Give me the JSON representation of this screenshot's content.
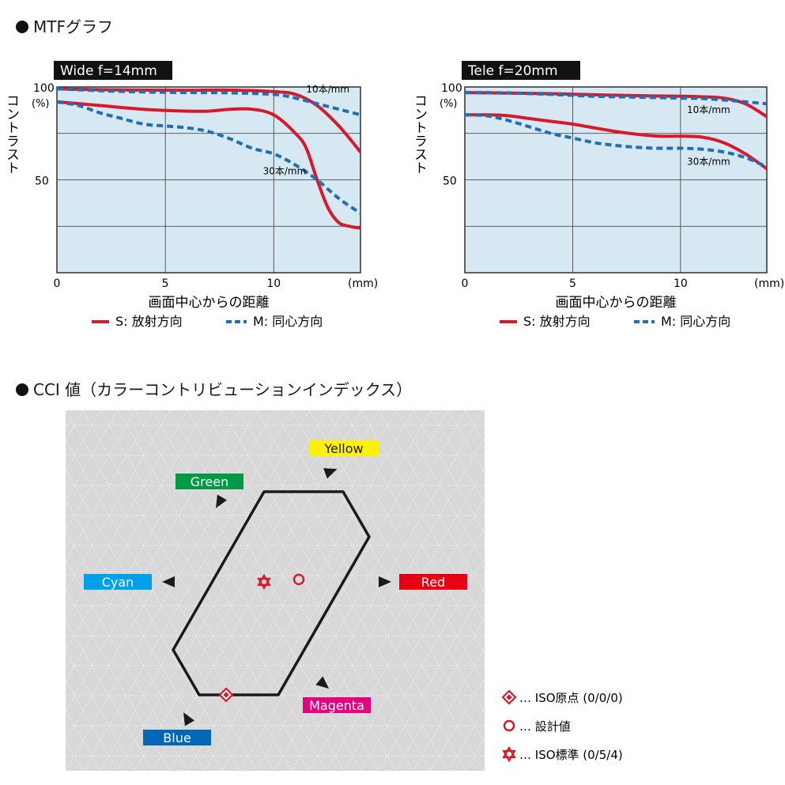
{
  "mtf_section": {
    "title": "MTFグラフ"
  },
  "cci_section": {
    "title": "CCI 値（カラーコントリビューションインデックス）"
  },
  "chart_data": [
    {
      "type": "line",
      "panel_label": "Wide  f=14mm",
      "ylabel": "コントラスト",
      "xlabel": "画面中心からの距離",
      "x_unit": "(mm)",
      "y_top_label": "100",
      "y_unit": "(%)",
      "xlim": [
        0,
        14
      ],
      "ylim": [
        0,
        100
      ],
      "x_ticks": [
        0,
        5,
        10
      ],
      "y_ticks": [
        50
      ],
      "grid": true,
      "series": [
        {
          "key": "S10",
          "style": "S",
          "color": "#d7192a",
          "x": [
            0,
            2,
            4,
            6,
            8,
            10,
            11,
            12,
            13,
            14
          ],
          "y": [
            99,
            98.5,
            98.3,
            98.2,
            98.3,
            97.5,
            96,
            90,
            79,
            65
          ]
        },
        {
          "key": "M10",
          "style": "M",
          "color": "#1f6fb5",
          "x": [
            0,
            2,
            4,
            6,
            8,
            10,
            11,
            12,
            13,
            14
          ],
          "y": [
            99,
            98,
            97.3,
            97,
            96.8,
            96,
            94,
            91,
            88,
            85
          ]
        },
        {
          "key": "S30",
          "style": "S",
          "color": "#d7192a",
          "x": [
            0,
            2,
            4,
            6,
            7,
            8,
            9,
            10,
            11,
            11.5,
            12,
            12.5,
            13,
            13.5,
            14
          ],
          "y": [
            92,
            90,
            88,
            87,
            87,
            88,
            88,
            85,
            75,
            67,
            50,
            35,
            27,
            25,
            24
          ]
        },
        {
          "key": "M30",
          "style": "M",
          "color": "#1f6fb5",
          "x": [
            0,
            1,
            2,
            3,
            4,
            5,
            6,
            7,
            8,
            9,
            10,
            11,
            12,
            13,
            14
          ],
          "y": [
            92,
            90,
            86,
            83,
            80,
            79,
            78,
            76,
            72,
            67,
            64,
            58,
            50,
            40,
            32
          ]
        }
      ],
      "annotations": [
        {
          "text": "10本/mm",
          "x": 11.5,
          "y": 97
        },
        {
          "text": "30本/mm",
          "x": 9.5,
          "y": 53
        }
      ],
      "legend": {
        "s_label": "S: 放射方向",
        "m_label": "M: 同心方向"
      }
    },
    {
      "type": "line",
      "panel_label": "Tele  f=20mm",
      "ylabel": "コントラスト",
      "xlabel": "画面中心からの距離",
      "x_unit": "(mm)",
      "y_top_label": "100",
      "y_unit": "(%)",
      "xlim": [
        0,
        14
      ],
      "ylim": [
        0,
        100
      ],
      "x_ticks": [
        0,
        5,
        10
      ],
      "y_ticks": [
        50
      ],
      "grid": true,
      "series": [
        {
          "key": "S10",
          "style": "S",
          "color": "#d7192a",
          "x": [
            0,
            2,
            4,
            6,
            8,
            10,
            11,
            12,
            13,
            14
          ],
          "y": [
            97,
            96.7,
            96.4,
            95.8,
            95.3,
            95,
            94.7,
            94,
            91,
            84
          ]
        },
        {
          "key": "M10",
          "style": "M",
          "color": "#1f6fb5",
          "x": [
            0,
            2,
            4,
            6,
            8,
            10,
            11,
            12,
            13,
            14
          ],
          "y": [
            97,
            96.8,
            96,
            95,
            94.5,
            94,
            93.8,
            93,
            92,
            91
          ]
        },
        {
          "key": "S30",
          "style": "S",
          "color": "#d7192a",
          "x": [
            0,
            1,
            2,
            3,
            4,
            5,
            6,
            7,
            8,
            9,
            10,
            11,
            12,
            13,
            14
          ],
          "y": [
            85,
            85,
            84.5,
            83,
            81.5,
            80,
            78,
            76,
            74.5,
            73.5,
            73.5,
            73,
            70,
            64,
            56
          ]
        },
        {
          "key": "M30",
          "style": "M",
          "color": "#1f6fb5",
          "x": [
            0,
            1,
            2,
            3,
            4,
            5,
            6,
            7,
            8,
            9,
            10,
            11,
            12,
            13,
            14
          ],
          "y": [
            85,
            84.5,
            82,
            78.5,
            75,
            72.5,
            70,
            68.5,
            67.5,
            67,
            67,
            66.5,
            65,
            62,
            57
          ]
        }
      ],
      "annotations": [
        {
          "text": "10本/mm",
          "x": 10.3,
          "y": 86
        },
        {
          "text": "30本/mm",
          "x": 10.3,
          "y": 58
        }
      ],
      "legend": {
        "s_label": "S: 放射方向",
        "m_label": "M: 同心方向"
      }
    },
    {
      "type": "scatter",
      "kind": "cci_hexagon",
      "hexagon": [
        [
          0,
          5
        ],
        [
          2,
          5
        ],
        [
          3,
          4
        ],
        [
          0,
          -2
        ],
        [
          -2,
          -2
        ],
        [
          -3,
          -1
        ]
      ],
      "colors": [
        {
          "key": "yellow",
          "label": "Yellow",
          "bg": "#fff200",
          "fg": "#1a1a1a"
        },
        {
          "key": "green",
          "label": "Green",
          "bg": "#009944",
          "fg": "#ffffff"
        },
        {
          "key": "cyan",
          "label": "Cyan",
          "bg": "#00a0e9",
          "fg": "#ffffff"
        },
        {
          "key": "red",
          "label": "Red",
          "bg": "#e60012",
          "fg": "#ffffff"
        },
        {
          "key": "magenta",
          "label": "Magenta",
          "bg": "#e4007f",
          "fg": "#ffffff"
        },
        {
          "key": "blue",
          "label": "Blue",
          "bg": "#0068b7",
          "fg": "#ffffff"
        }
      ],
      "points": [
        {
          "key": "iso_origin",
          "marker": "diamond",
          "value": [
            0,
            0,
            0
          ],
          "legend": "… ISO原点 (0/0/0)"
        },
        {
          "key": "design",
          "marker": "circle",
          "value": null,
          "legend": "… 設計値"
        },
        {
          "key": "iso_standard",
          "marker": "star",
          "value": [
            0,
            5,
            4
          ],
          "legend": "… ISO標準 (0/5/4)"
        }
      ],
      "marker_color": "#d7192a"
    }
  ]
}
